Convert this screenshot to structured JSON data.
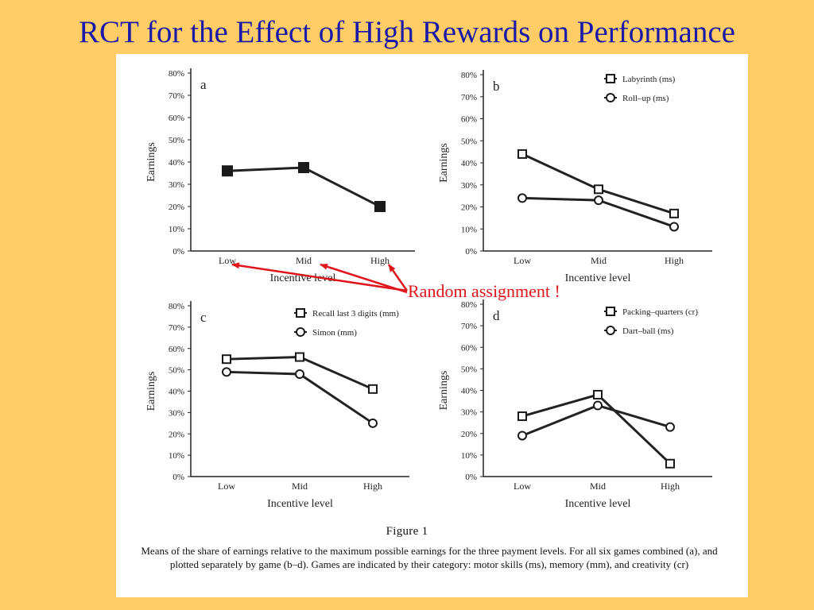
{
  "slide": {
    "title": "RCT for the Effect of High Rewards on Performance",
    "annotation": "Random assignment !"
  },
  "figure": {
    "heading": "Figure 1",
    "caption": "Means of the share of earnings relative to the maximum possible earnings for the three payment levels. For all six games combined (a), and plotted separately by game (b–d). Games are indicated by their category: motor skills (ms), memory (mm), and creativity (cr)"
  },
  "colors": {
    "background": "#FFCC66",
    "title": "#1A1AA8",
    "annotation": "#E0151B",
    "lines": "#222222"
  },
  "chart_data": [
    {
      "type": "line",
      "panel": "a",
      "categories": [
        "Low",
        "Mid",
        "High"
      ],
      "xlabel": "Incentive level",
      "ylabel": "Earnings",
      "ylim": [
        0,
        80
      ],
      "yticks": [
        "0%",
        "10%",
        "20%",
        "30%",
        "40%",
        "50%",
        "60%",
        "70%",
        "80%"
      ],
      "series": [
        {
          "marker": "filled-square",
          "values": [
            36,
            37.5,
            20
          ]
        }
      ]
    },
    {
      "type": "line",
      "panel": "b",
      "categories": [
        "Low",
        "Mid",
        "High"
      ],
      "xlabel": "Incentive level",
      "ylabel": "Earnings",
      "ylim": [
        0,
        80
      ],
      "yticks": [
        "0%",
        "10%",
        "20%",
        "30%",
        "40%",
        "50%",
        "60%",
        "70%",
        "80%"
      ],
      "series": [
        {
          "name": "Labyrinth (ms)",
          "marker": "square",
          "values": [
            44,
            28,
            17
          ]
        },
        {
          "name": "Roll–up (ms)",
          "marker": "circle",
          "values": [
            24,
            23,
            11
          ]
        }
      ]
    },
    {
      "type": "line",
      "panel": "c",
      "categories": [
        "Low",
        "Mid",
        "High"
      ],
      "xlabel": "Incentive level",
      "ylabel": "Earnings",
      "ylim": [
        0,
        80
      ],
      "yticks": [
        "0%",
        "10%",
        "20%",
        "30%",
        "40%",
        "50%",
        "60%",
        "70%",
        "80%"
      ],
      "series": [
        {
          "name": "Recall last 3 digits (mm)",
          "marker": "square",
          "values": [
            55,
            56,
            41
          ]
        },
        {
          "name": "Simon (mm)",
          "marker": "circle",
          "values": [
            49,
            48,
            25
          ]
        }
      ]
    },
    {
      "type": "line",
      "panel": "d",
      "categories": [
        "Low",
        "Mid",
        "High"
      ],
      "xlabel": "Incentive level",
      "ylabel": "Earnings",
      "ylim": [
        0,
        80
      ],
      "yticks": [
        "0%",
        "10%",
        "20%",
        "30%",
        "40%",
        "50%",
        "60%",
        "70%",
        "80%"
      ],
      "series": [
        {
          "name": "Packing–quarters (cr)",
          "marker": "square",
          "values": [
            28,
            38,
            6
          ]
        },
        {
          "name": "Dart–ball (ms)",
          "marker": "circle",
          "values": [
            19,
            33,
            23
          ]
        }
      ]
    }
  ]
}
